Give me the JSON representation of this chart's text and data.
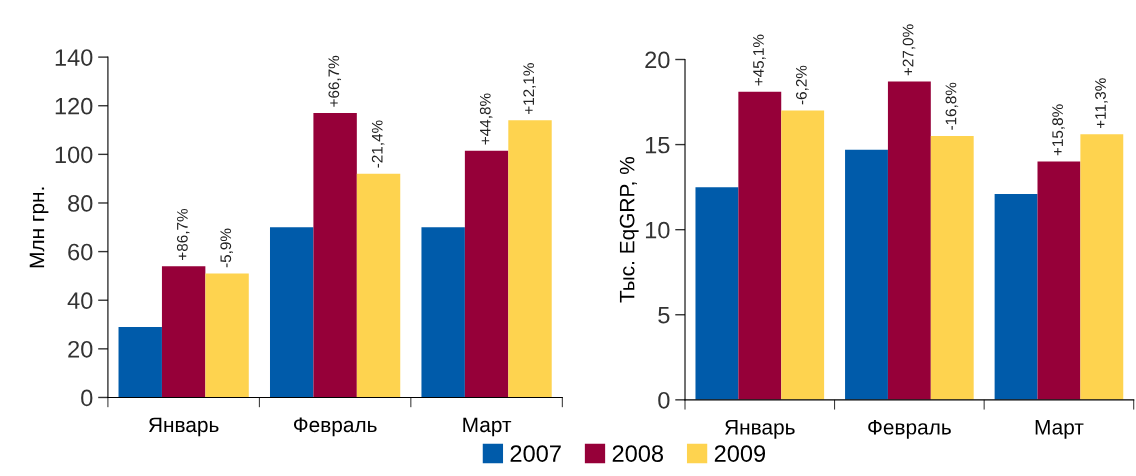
{
  "chart_data": [
    {
      "type": "bar",
      "ylabel": "Млн грн.",
      "categories": [
        "Январь",
        "Февраль",
        "Март"
      ],
      "ylim": [
        0,
        140
      ],
      "yticks": [
        0,
        20,
        40,
        60,
        80,
        100,
        120,
        140
      ],
      "grid": false,
      "legend": "bottom",
      "series": [
        {
          "name": "2007",
          "color": "#005baa",
          "values": [
            29,
            70,
            70
          ]
        },
        {
          "name": "2008",
          "color": "#960039",
          "values": [
            54,
            117,
            101.5
          ]
        },
        {
          "name": "2009",
          "color": "#fed34f",
          "values": [
            51,
            92,
            114
          ]
        }
      ],
      "annotations": [
        {
          "text": "+86,7%",
          "x": "Январь",
          "y": 54
        },
        {
          "text": "+66,7%",
          "x": "Февраль",
          "y": 117
        },
        {
          "text": "+44,8%",
          "x": "Март",
          "y": 101.5
        },
        "-5,9%",
        "-21,4%",
        "+12,1%"
      ]
    },
    {
      "type": "bar",
      "ylabel": "Тыс. EqGRP, %",
      "categories": [
        "Январь",
        "Февраль",
        "Март"
      ],
      "ylim": [
        0,
        20
      ],
      "yticks": [
        0,
        5,
        10,
        15,
        20
      ],
      "grid": false,
      "legend": "bottom",
      "series": [
        {
          "name": "2007",
          "color": "#005baa",
          "values": [
            12.5,
            14.7,
            12.1
          ]
        },
        {
          "name": "2008",
          "color": "#960039",
          "values": [
            18.1,
            18.7,
            14.0
          ]
        },
        {
          "name": "2009",
          "color": "#fed34f",
          "values": [
            17.0,
            15.5,
            15.6
          ]
        }
      ],
      "annotations": [
        {
          "text": "+45,1%",
          "x": "Январь",
          "y": 18.1
        },
        {
          "text": "+27,0%",
          "x": "Февраль",
          "y": 18.7
        },
        {
          "text": "+15,8%",
          "x": "Март",
          "y": 14.0
        },
        "-6,2%",
        "-16,8%",
        "+11,3%"
      ]
    }
  ]
}
